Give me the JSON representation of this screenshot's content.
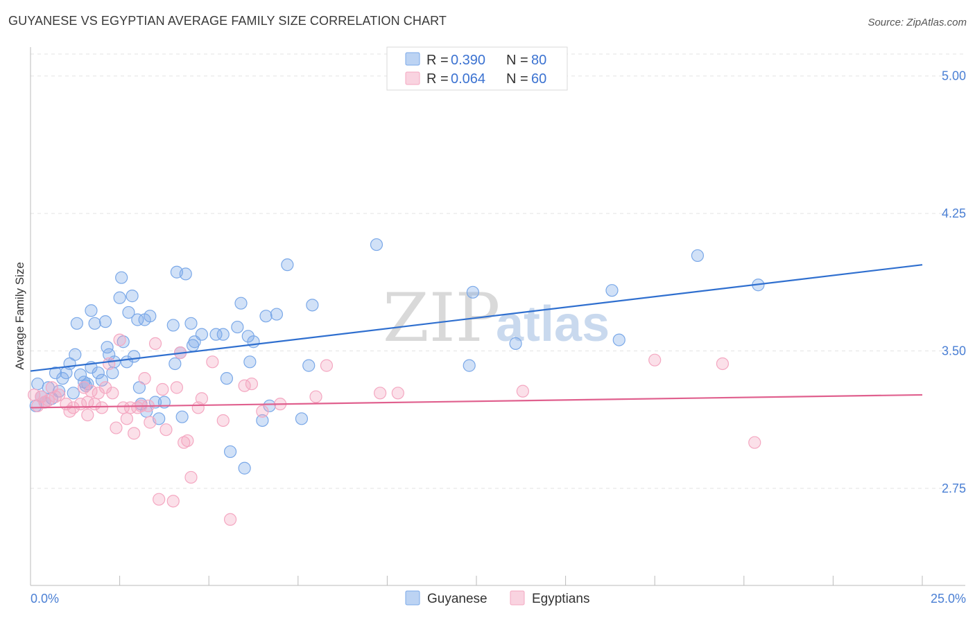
{
  "chart_data": {
    "type": "scatter",
    "title": "GUYANESE VS EGYPTIAN AVERAGE FAMILY SIZE CORRELATION CHART",
    "source": "Source: ZipAtlas.com",
    "ylabel": "Average Family Size",
    "xlim": [
      0,
      25
    ],
    "ylim": [
      2.22,
      5.12
    ],
    "y_ticks": [
      {
        "value": 5.0,
        "label": "5.00"
      },
      {
        "value": 4.25,
        "label": "4.25"
      },
      {
        "value": 3.5,
        "label": "3.50"
      },
      {
        "value": 2.75,
        "label": "2.75"
      }
    ],
    "x_tick_values": [
      0,
      2.5,
      5,
      7.5,
      10,
      12.5,
      15,
      17.5,
      20,
      22.5,
      25
    ],
    "x_labels": {
      "left": "0.0%",
      "right": "25.0%"
    },
    "watermark": {
      "part1": "ZIP",
      "part2": "atlas"
    },
    "legend": {
      "r_label": "R =",
      "n_label": "N =",
      "entries": [
        {
          "r": "0.390",
          "n": "80"
        },
        {
          "r": "0.064",
          "n": "60"
        }
      ]
    },
    "series": [
      {
        "name": "Guyanese",
        "color": "#7aa8e8",
        "line_color": "#2f6fcf",
        "trend": {
          "x0": 0,
          "y0": 3.39,
          "x1": 25,
          "y1": 3.97
        },
        "points": [
          [
            0.2,
            3.32
          ],
          [
            0.3,
            3.25
          ],
          [
            0.4,
            3.22
          ],
          [
            0.5,
            3.3
          ],
          [
            0.7,
            3.38
          ],
          [
            0.8,
            3.28
          ],
          [
            0.9,
            3.35
          ],
          [
            1.0,
            3.38
          ],
          [
            1.1,
            3.43
          ],
          [
            1.2,
            3.27
          ],
          [
            1.25,
            3.48
          ],
          [
            1.3,
            3.65
          ],
          [
            1.4,
            3.37
          ],
          [
            1.5,
            3.33
          ],
          [
            1.6,
            3.32
          ],
          [
            1.7,
            3.41
          ],
          [
            1.7,
            3.72
          ],
          [
            1.8,
            3.65
          ],
          [
            1.9,
            3.38
          ],
          [
            2.0,
            3.34
          ],
          [
            2.1,
            3.66
          ],
          [
            2.15,
            3.52
          ],
          [
            2.2,
            3.48
          ],
          [
            2.3,
            3.38
          ],
          [
            2.35,
            3.44
          ],
          [
            2.5,
            3.79
          ],
          [
            2.55,
            3.9
          ],
          [
            2.6,
            3.55
          ],
          [
            2.7,
            3.44
          ],
          [
            2.75,
            3.71
          ],
          [
            2.85,
            3.8
          ],
          [
            2.9,
            3.47
          ],
          [
            3.0,
            3.67
          ],
          [
            3.05,
            3.3
          ],
          [
            3.1,
            3.21
          ],
          [
            3.2,
            3.67
          ],
          [
            3.25,
            3.17
          ],
          [
            3.35,
            3.69
          ],
          [
            3.5,
            3.22
          ],
          [
            3.6,
            3.13
          ],
          [
            3.75,
            3.22
          ],
          [
            4.0,
            3.64
          ],
          [
            4.05,
            3.43
          ],
          [
            4.1,
            3.93
          ],
          [
            4.2,
            3.49
          ],
          [
            4.25,
            3.14
          ],
          [
            4.35,
            3.92
          ],
          [
            4.5,
            3.65
          ],
          [
            4.55,
            3.53
          ],
          [
            4.6,
            3.55
          ],
          [
            4.8,
            3.59
          ],
          [
            5.2,
            3.59
          ],
          [
            5.4,
            3.59
          ],
          [
            5.5,
            3.35
          ],
          [
            5.6,
            2.95
          ],
          [
            5.8,
            3.63
          ],
          [
            5.9,
            3.76
          ],
          [
            6.0,
            2.86
          ],
          [
            6.1,
            3.58
          ],
          [
            6.15,
            3.44
          ],
          [
            6.25,
            3.55
          ],
          [
            6.5,
            3.12
          ],
          [
            6.6,
            3.69
          ],
          [
            6.7,
            3.2
          ],
          [
            6.9,
            3.7
          ],
          [
            7.2,
            3.97
          ],
          [
            7.6,
            3.13
          ],
          [
            7.8,
            3.42
          ],
          [
            7.9,
            3.75
          ],
          [
            9.7,
            4.08
          ],
          [
            12.3,
            3.42
          ],
          [
            12.4,
            3.82
          ],
          [
            13.6,
            3.54
          ],
          [
            16.3,
            3.83
          ],
          [
            16.5,
            3.56
          ],
          [
            18.7,
            4.02
          ],
          [
            20.4,
            3.86
          ],
          [
            0.15,
            3.2
          ],
          [
            0.6,
            3.24
          ],
          [
            1.55,
            3.31
          ]
        ]
      },
      {
        "name": "Egyptians",
        "color": "#f4a7c1",
        "line_color": "#e0608e",
        "trend": {
          "x0": 0,
          "y0": 3.19,
          "x1": 25,
          "y1": 3.26
        },
        "points": [
          [
            0.1,
            3.26
          ],
          [
            0.2,
            3.2
          ],
          [
            0.3,
            3.25
          ],
          [
            0.4,
            3.22
          ],
          [
            0.5,
            3.23
          ],
          [
            0.6,
            3.3
          ],
          [
            0.7,
            3.25
          ],
          [
            0.8,
            3.26
          ],
          [
            1.0,
            3.21
          ],
          [
            1.1,
            3.17
          ],
          [
            1.2,
            3.19
          ],
          [
            1.4,
            3.21
          ],
          [
            1.5,
            3.3
          ],
          [
            1.6,
            3.22
          ],
          [
            1.6,
            3.15
          ],
          [
            1.7,
            3.28
          ],
          [
            1.8,
            3.21
          ],
          [
            1.9,
            3.27
          ],
          [
            2.0,
            3.19
          ],
          [
            2.1,
            3.3
          ],
          [
            2.2,
            3.43
          ],
          [
            2.3,
            3.27
          ],
          [
            2.4,
            3.08
          ],
          [
            2.5,
            3.56
          ],
          [
            2.6,
            3.19
          ],
          [
            2.7,
            3.13
          ],
          [
            2.8,
            3.19
          ],
          [
            2.9,
            3.05
          ],
          [
            3.0,
            3.19
          ],
          [
            3.1,
            3.2
          ],
          [
            3.2,
            3.35
          ],
          [
            3.3,
            3.2
          ],
          [
            3.35,
            3.11
          ],
          [
            3.5,
            3.54
          ],
          [
            3.6,
            2.69
          ],
          [
            3.7,
            3.29
          ],
          [
            3.8,
            3.07
          ],
          [
            4.0,
            2.68
          ],
          [
            4.1,
            3.3
          ],
          [
            4.2,
            3.49
          ],
          [
            4.3,
            3.0
          ],
          [
            4.4,
            3.01
          ],
          [
            4.5,
            2.81
          ],
          [
            4.7,
            3.19
          ],
          [
            4.8,
            3.24
          ],
          [
            5.1,
            3.44
          ],
          [
            5.4,
            3.12
          ],
          [
            5.6,
            2.58
          ],
          [
            6.0,
            3.31
          ],
          [
            6.2,
            3.32
          ],
          [
            6.5,
            3.17
          ],
          [
            7.0,
            3.21
          ],
          [
            8.0,
            3.25
          ],
          [
            8.3,
            3.42
          ],
          [
            9.8,
            3.27
          ],
          [
            10.3,
            3.27
          ],
          [
            13.8,
            3.28
          ],
          [
            17.5,
            3.45
          ],
          [
            19.4,
            3.43
          ],
          [
            20.3,
            3.0
          ]
        ]
      }
    ]
  }
}
